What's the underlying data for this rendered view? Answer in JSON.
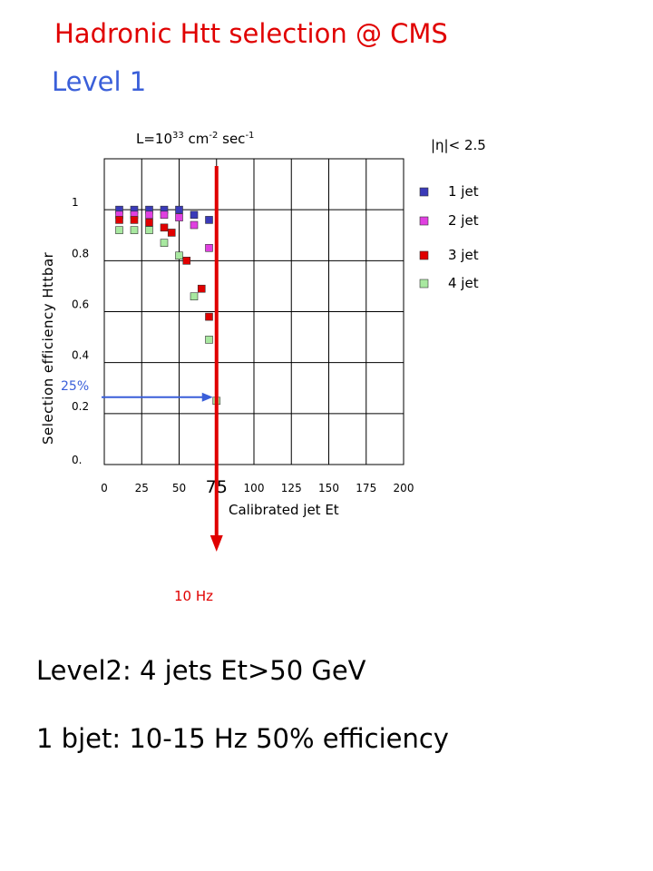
{
  "header": {
    "title": "Hadronic Htt selection @ CMS",
    "subtitle": "Level 1"
  },
  "notes": {
    "luminosity": [
      "L=10",
      "33",
      " cm",
      "-2",
      " sec",
      "-1"
    ],
    "eta_cut": "|η|< 2.5",
    "rate_label": "10 Hz",
    "efficiency_marker": "25%",
    "cut_value": "75",
    "level2": "Level2: 4 jets Et>50 GeV",
    "bjet": "1 bjet: 10-15 Hz 50% efficiency"
  },
  "chart_data": {
    "type": "scatter",
    "xlabel": "Calibrated jet Et",
    "ylabel": "Selection efficiency Httbar",
    "xlim": [
      0,
      200
    ],
    "ylim": [
      0,
      1.2
    ],
    "x_ticks": [
      "0",
      "25",
      "50",
      "75",
      "100",
      "125",
      "150",
      "175",
      "200"
    ],
    "y_ticks": [
      "0.",
      "0.2",
      "0.4",
      "0.6",
      "0.8",
      "1"
    ],
    "grid": true,
    "legend_position": "right",
    "series": [
      {
        "name": "1 jet",
        "color": "#3a3ab8",
        "x": [
          10,
          20,
          30,
          40,
          50,
          60,
          70
        ],
        "y": [
          1.0,
          1.0,
          1.0,
          1.0,
          1.0,
          0.98,
          0.96
        ]
      },
      {
        "name": "2 jet",
        "color": "#e040e0",
        "x": [
          10,
          20,
          30,
          40,
          50,
          60,
          70
        ],
        "y": [
          0.98,
          0.98,
          0.98,
          0.98,
          0.97,
          0.94,
          0.85
        ]
      },
      {
        "name": "3 jet",
        "color": "#e00000",
        "x": [
          10,
          20,
          30,
          40,
          45,
          55,
          65,
          70
        ],
        "y": [
          0.96,
          0.96,
          0.95,
          0.93,
          0.91,
          0.8,
          0.69,
          0.58
        ]
      },
      {
        "name": "4 jet",
        "color": "#a8e8a0",
        "x": [
          10,
          20,
          30,
          40,
          50,
          60,
          70,
          75
        ],
        "y": [
          0.92,
          0.92,
          0.92,
          0.87,
          0.82,
          0.66,
          0.49,
          0.25
        ]
      }
    ],
    "annotations": {
      "cut_x": 75,
      "arrow_y": 0.25
    }
  }
}
